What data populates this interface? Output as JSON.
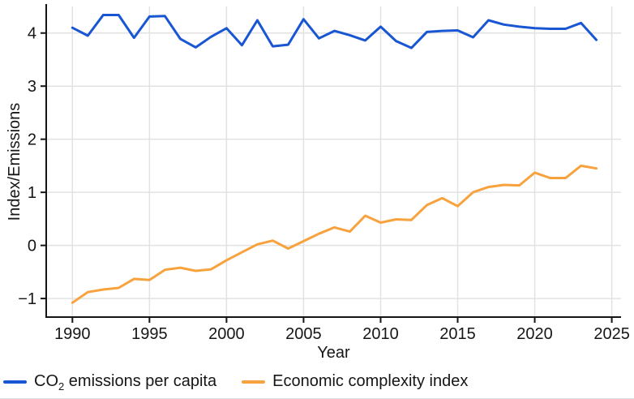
{
  "chart_data": {
    "type": "line",
    "x": [
      1990,
      1991,
      1992,
      1993,
      1994,
      1995,
      1996,
      1997,
      1998,
      1999,
      2000,
      2001,
      2002,
      2003,
      2004,
      2005,
      2006,
      2007,
      2008,
      2009,
      2010,
      2011,
      2012,
      2013,
      2014,
      2015,
      2016,
      2017,
      2018,
      2019,
      2020,
      2021,
      2022,
      2023,
      2024
    ],
    "series": [
      {
        "name": "CO₂ emissions per capita",
        "label_parts": {
          "prefix": "CO",
          "sub": "2",
          "rest": " emissions per capita"
        },
        "color": "#1956d3",
        "values": [
          4.1,
          3.95,
          4.34,
          4.34,
          3.91,
          4.31,
          4.32,
          3.89,
          3.73,
          3.93,
          4.09,
          3.77,
          4.24,
          3.75,
          3.78,
          4.26,
          3.9,
          4.04,
          3.96,
          3.86,
          4.12,
          3.85,
          3.72,
          4.02,
          4.04,
          4.05,
          3.92,
          4.24,
          4.16,
          4.12,
          4.09,
          4.08,
          4.08,
          4.19,
          3.87
        ]
      },
      {
        "name": "Economic complexity index",
        "label_parts": {
          "prefix": "Economic complexity index",
          "sub": "",
          "rest": ""
        },
        "color": "#f8a23e",
        "values": [
          -1.08,
          -0.88,
          -0.83,
          -0.8,
          -0.63,
          -0.65,
          -0.46,
          -0.42,
          -0.48,
          -0.45,
          -0.28,
          -0.13,
          0.02,
          0.09,
          -0.06,
          0.08,
          0.22,
          0.34,
          0.26,
          0.56,
          0.43,
          0.49,
          0.48,
          0.76,
          0.89,
          0.74,
          1.0,
          1.1,
          1.14,
          1.13,
          1.37,
          1.27,
          1.27,
          1.5,
          1.45
        ]
      }
    ],
    "title": "",
    "xlabel": "Year",
    "ylabel": "Index/Emissions",
    "x_ticks": [
      1990,
      1995,
      2000,
      2005,
      2010,
      2015,
      2020,
      2025
    ],
    "y_ticks": [
      -1,
      0,
      1,
      2,
      3,
      4
    ],
    "y_tick_labels": [
      "−1",
      "0",
      "1",
      "2",
      "3",
      "4"
    ],
    "x_range": [
      1988.3,
      2025.6
    ],
    "y_range": [
      -1.35,
      4.5
    ],
    "grid": true,
    "legend_position": "bottom-left",
    "colors": {
      "grid": "#e2e2e2",
      "axis": "#151515",
      "text": "#161616",
      "background": "#ffffff",
      "divider": "#dde2e7"
    }
  }
}
